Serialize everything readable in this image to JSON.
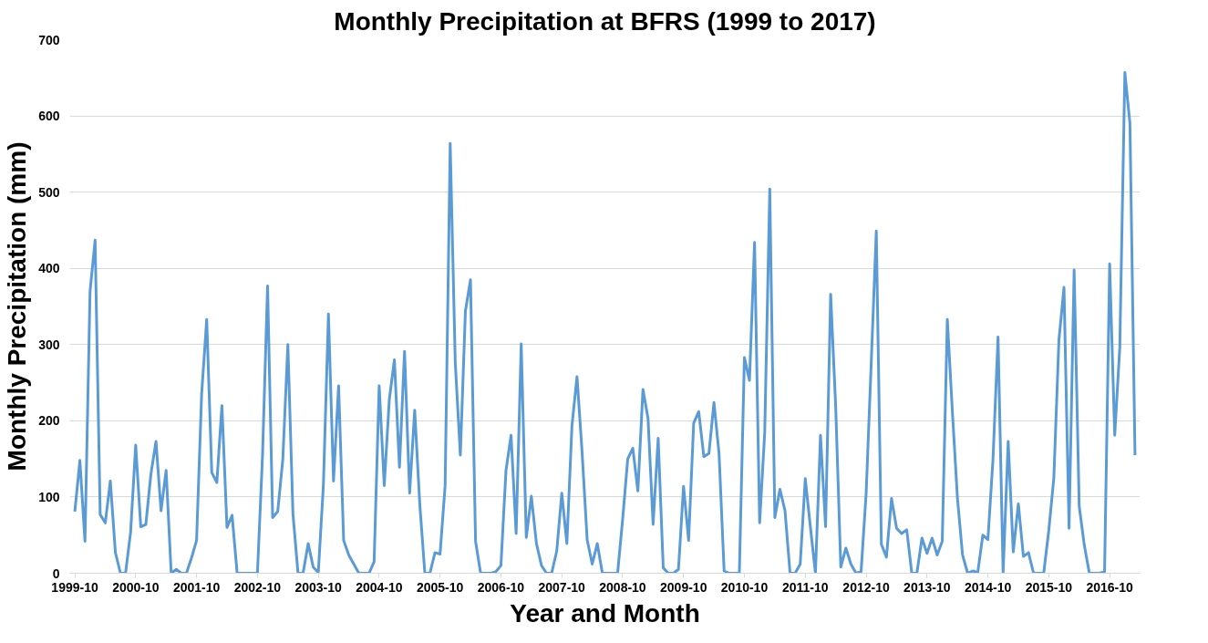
{
  "chart_data": {
    "type": "line",
    "title": "Monthly Precipitation at BFRS (1999 to 2017)",
    "xlabel": "Year and Month",
    "ylabel": "Monthly Precipitation (mm)",
    "categories": [
      "1999-10",
      null,
      null,
      null,
      null,
      null,
      null,
      null,
      null,
      null,
      null,
      null,
      "2000-10",
      null,
      null,
      null,
      null,
      null,
      null,
      null,
      null,
      null,
      null,
      null,
      "2001-10",
      null,
      null,
      null,
      null,
      null,
      null,
      null,
      null,
      null,
      null,
      null,
      "2002-10",
      null,
      null,
      null,
      null,
      null,
      null,
      null,
      null,
      null,
      null,
      null,
      "2003-10",
      null,
      null,
      null,
      null,
      null,
      null,
      null,
      null,
      null,
      null,
      null,
      "2004-10",
      null,
      null,
      null,
      null,
      null,
      null,
      null,
      null,
      null,
      null,
      null,
      "2005-10",
      null,
      null,
      null,
      null,
      null,
      null,
      null,
      null,
      null,
      null,
      null,
      "2006-10",
      null,
      null,
      null,
      null,
      null,
      null,
      null,
      null,
      null,
      null,
      null,
      "2007-10",
      null,
      null,
      null,
      null,
      null,
      null,
      null,
      null,
      null,
      null,
      null,
      "2008-10",
      null,
      null,
      null,
      null,
      null,
      null,
      null,
      null,
      null,
      null,
      null,
      "2009-10",
      null,
      null,
      null,
      null,
      null,
      null,
      null,
      null,
      null,
      null,
      null,
      "2010-10",
      null,
      null,
      null,
      null,
      null,
      null,
      null,
      null,
      null,
      null,
      null,
      "2011-10",
      null,
      null,
      null,
      null,
      null,
      null,
      null,
      null,
      null,
      null,
      null,
      "2012-10",
      null,
      null,
      null,
      null,
      null,
      null,
      null,
      null,
      null,
      null,
      null,
      "2013-10",
      null,
      null,
      null,
      null,
      null,
      null,
      null,
      null,
      null,
      null,
      null,
      "2014-10",
      null,
      null,
      null,
      null,
      null,
      null,
      null,
      null,
      null,
      null,
      null,
      "2015-10",
      null,
      null,
      null,
      null,
      null,
      null,
      null,
      null,
      null,
      null,
      null,
      "2016-10",
      null,
      null,
      null,
      null,
      null
    ],
    "series": [
      {
        "color": "#5b9bd5",
        "values": [
          81,
          148,
          42,
          370,
          437,
          77,
          66,
          121,
          27,
          0,
          0,
          54,
          168,
          61,
          64,
          130,
          173,
          82,
          135,
          0,
          5,
          0,
          0,
          20,
          43,
          235,
          333,
          132,
          119,
          220,
          60,
          76,
          0,
          0,
          0,
          0,
          0,
          154,
          377,
          73,
          81,
          149,
          300,
          78,
          0,
          0,
          39,
          8,
          1,
          115,
          340,
          121,
          246,
          43,
          24,
          12,
          0,
          0,
          0,
          15,
          246,
          115,
          228,
          280,
          139,
          291,
          105,
          214,
          91,
          0,
          0,
          27,
          25,
          115,
          564,
          276,
          155,
          344,
          385,
          42,
          0,
          0,
          0,
          2,
          10,
          135,
          181,
          52,
          301,
          47,
          101,
          39,
          10,
          0,
          0,
          29,
          105,
          39,
          193,
          258,
          159,
          44,
          12,
          39,
          0,
          0,
          0,
          0,
          71,
          150,
          164,
          108,
          241,
          203,
          64,
          177,
          7,
          0,
          0,
          5,
          114,
          43,
          197,
          212,
          153,
          157,
          224,
          157,
          3,
          0,
          0,
          0,
          283,
          253,
          434,
          66,
          184,
          504,
          73,
          110,
          82,
          0,
          0,
          12,
          124,
          61,
          0,
          181,
          61,
          366,
          218,
          8,
          33,
          12,
          0,
          2,
          105,
          276,
          449,
          38,
          21,
          98,
          59,
          52,
          57,
          0,
          0,
          46,
          26,
          46,
          24,
          42,
          333,
          212,
          98,
          24,
          0,
          3,
          1,
          50,
          44,
          149,
          310,
          1,
          173,
          28,
          91,
          22,
          27,
          0,
          0,
          0,
          56,
          125,
          306,
          375,
          59,
          398,
          88,
          37,
          0,
          0,
          0,
          2,
          406,
          181,
          296,
          657,
          590,
          155
        ]
      }
    ],
    "ylim": [
      0,
      700
    ],
    "yticks": [
      0,
      100,
      200,
      300,
      400,
      500,
      600,
      700
    ],
    "grid": "y",
    "marker": "none",
    "line_style": "solid"
  }
}
